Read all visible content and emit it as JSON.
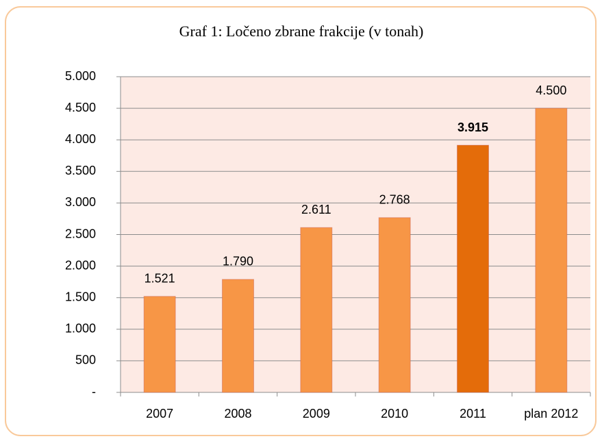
{
  "chart_data": {
    "type": "bar",
    "title": "Graf 1: Ločeno zbrane frakcije (v tonah)",
    "categories": [
      "2007",
      "2008",
      "2009",
      "2010",
      "2011",
      "plan 2012"
    ],
    "values": [
      1521,
      1790,
      2611,
      2768,
      3915,
      4500
    ],
    "value_labels": [
      "1.521",
      "1.790",
      "2.611",
      "2.768",
      "3.915",
      "4.500"
    ],
    "colors": [
      "#f79646",
      "#f79646",
      "#f79646",
      "#f79646",
      "#e46c0a",
      "#f79646"
    ],
    "value_label_bold": [
      false,
      false,
      false,
      false,
      true,
      false
    ],
    "ylim": [
      0,
      5000
    ],
    "yticks": [
      {
        "value": 0,
        "label": "-"
      },
      500,
      {
        "value": 1000,
        "label": "1.000"
      },
      {
        "value": 1500,
        "label": "1.500"
      },
      {
        "value": 2000,
        "label": "2.000"
      },
      {
        "value": 2500,
        "label": "2.500"
      },
      {
        "value": 3000,
        "label": "3.000"
      },
      {
        "value": 3500,
        "label": "3.500"
      },
      {
        "value": 4000,
        "label": "4.000"
      },
      {
        "value": 4500,
        "label": "4.500"
      },
      {
        "value": 5000,
        "label": "5.000"
      }
    ],
    "grid": true
  }
}
